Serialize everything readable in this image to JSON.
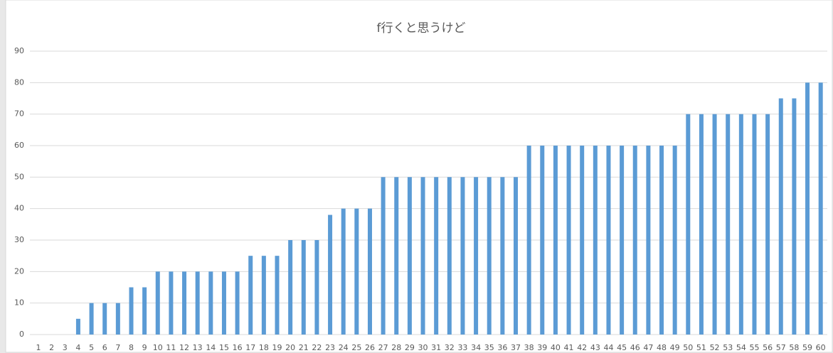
{
  "chart_data": {
    "type": "bar",
    "title": "f行くと思うけど",
    "categories": [
      "1",
      "2",
      "3",
      "4",
      "5",
      "6",
      "7",
      "8",
      "9",
      "10",
      "11",
      "12",
      "13",
      "14",
      "15",
      "16",
      "17",
      "18",
      "19",
      "20",
      "21",
      "22",
      "23",
      "24",
      "25",
      "26",
      "27",
      "28",
      "29",
      "30",
      "31",
      "32",
      "33",
      "34",
      "35",
      "36",
      "37",
      "38",
      "39",
      "40",
      "41",
      "42",
      "43",
      "44",
      "45",
      "46",
      "47",
      "48",
      "49",
      "50",
      "51",
      "52",
      "53",
      "54",
      "55",
      "56",
      "57",
      "58",
      "59",
      "60"
    ],
    "values": [
      0,
      0,
      0,
      5,
      10,
      10,
      10,
      15,
      15,
      20,
      20,
      20,
      20,
      20,
      20,
      20,
      25,
      25,
      25,
      30,
      30,
      30,
      38,
      40,
      40,
      40,
      50,
      50,
      50,
      50,
      50,
      50,
      50,
      50,
      50,
      50,
      50,
      60,
      60,
      60,
      60,
      60,
      60,
      60,
      60,
      60,
      60,
      60,
      60,
      70,
      70,
      70,
      70,
      70,
      70,
      70,
      75,
      75,
      80,
      80
    ],
    "color": "#5b9bd5",
    "ylim": [
      0,
      90
    ],
    "yticks": [
      0,
      10,
      20,
      30,
      40,
      50,
      60,
      70,
      80,
      90
    ],
    "grid": true
  }
}
